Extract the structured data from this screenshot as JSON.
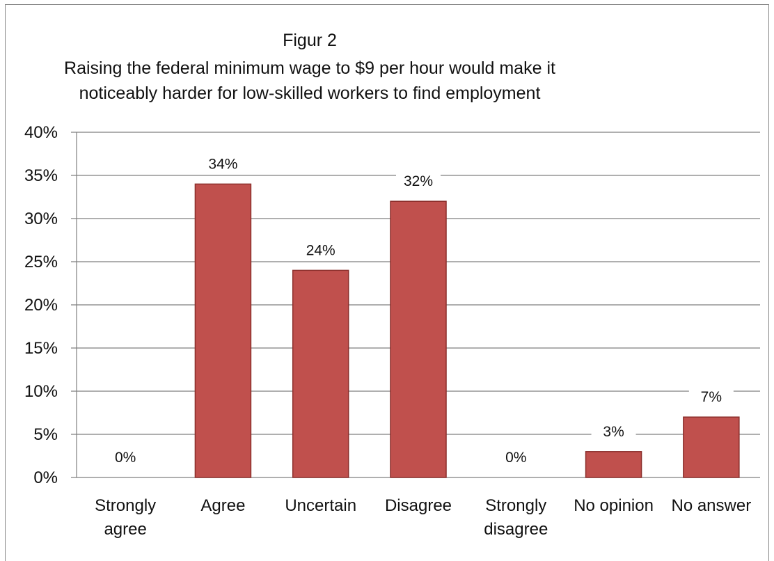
{
  "chart_data": {
    "type": "bar",
    "title": [
      "Figur 2",
      "Raising the federal minimum wage to $9 per hour would make it",
      "noticeably harder for low-skilled workers to find employment"
    ],
    "categories": [
      [
        "Strongly",
        "agree"
      ],
      [
        "Agree"
      ],
      [
        "Uncertain"
      ],
      [
        "Disagree"
      ],
      [
        "Strongly",
        "disagree"
      ],
      [
        "No opinion"
      ],
      [
        "No answer"
      ]
    ],
    "values": [
      0,
      34,
      24,
      32,
      0,
      3,
      7
    ],
    "data_labels": [
      "0%",
      "34%",
      "24%",
      "32%",
      "0%",
      "3%",
      "7%"
    ],
    "y_ticks": [
      "0%",
      "5%",
      "10%",
      "15%",
      "20%",
      "25%",
      "30%",
      "35%",
      "40%"
    ],
    "ylim": [
      0,
      40
    ],
    "grid": true,
    "legend": "none",
    "colors": {
      "bar": "#C0504D",
      "bar_edge": "#8B2F2C",
      "grid": "#7F7F7F"
    }
  }
}
